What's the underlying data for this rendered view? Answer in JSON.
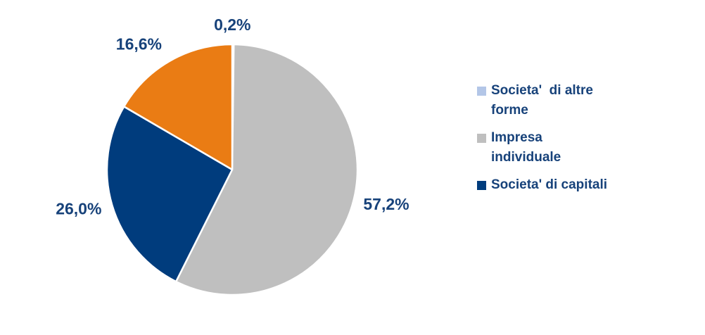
{
  "chart_data": {
    "type": "pie",
    "title": "",
    "direction": "clockwise",
    "start_angle_deg": 0,
    "legend_position": "right",
    "grid": false,
    "slices": [
      {
        "name": "Societa'  di altre forme",
        "value_pct": 0.2,
        "data_label": "0,2%",
        "color": "#B3C6E7",
        "in_legend": true
      },
      {
        "name": "Impresa individuale",
        "value_pct": 57.2,
        "data_label": "57,2%",
        "color": "#BFBFBF",
        "in_legend": true
      },
      {
        "name": "Societa' di capitali",
        "value_pct": 26.0,
        "data_label": "26,0%",
        "color": "#003C7D",
        "in_legend": true
      },
      {
        "name": "",
        "value_pct": 16.6,
        "data_label": "16,6%",
        "color": "#EA7C14",
        "in_legend": false
      }
    ],
    "legend_entries": [
      {
        "lines": [
          "Societa'  di altre",
          "forme"
        ],
        "color": "#B3C6E7"
      },
      {
        "lines": [
          "Impresa",
          "individuale"
        ],
        "color": "#BFBFBF"
      },
      {
        "lines": [
          "Societa' di capitali"
        ],
        "color": "#003C7D"
      }
    ],
    "data_label_color": "#17427A",
    "legend_text_color": "#17427A"
  }
}
